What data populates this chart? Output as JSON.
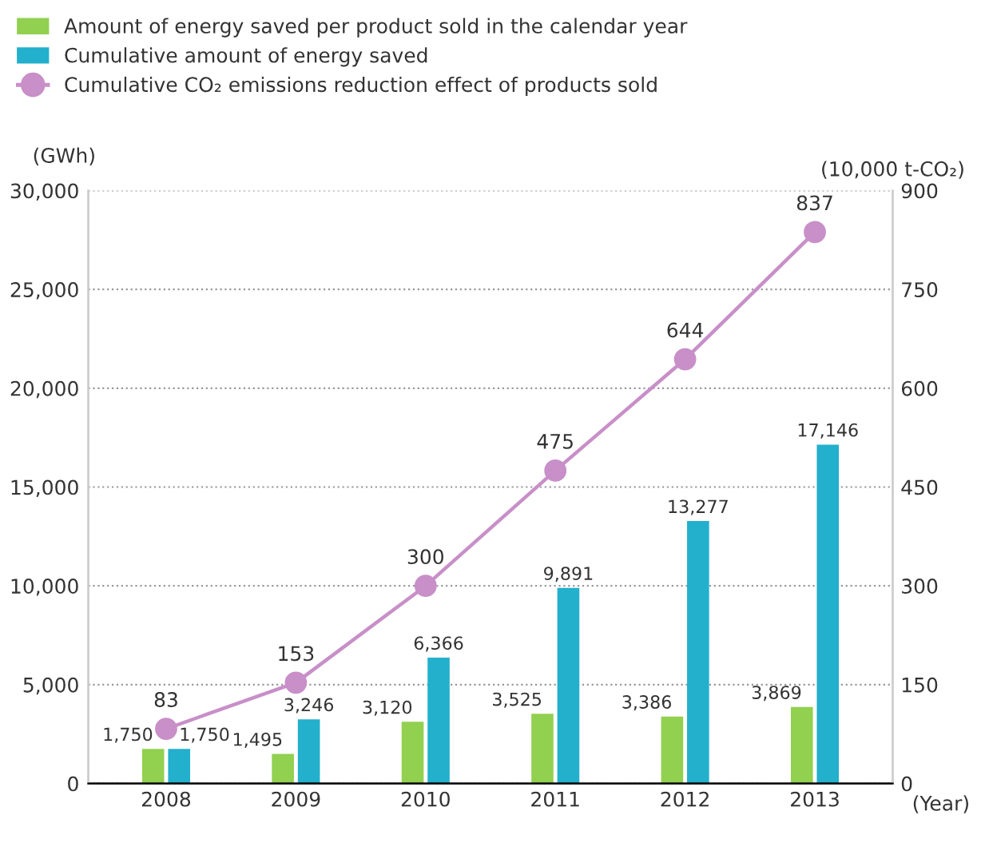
{
  "chart_data": {
    "type": "bar",
    "categories": [
      "2008",
      "2009",
      "2010",
      "2011",
      "2012",
      "2013"
    ],
    "series": [
      {
        "name": "Amount of energy saved per product sold in the calendar year",
        "color": "#92d050",
        "values": [
          1750,
          1495,
          3120,
          3525,
          3386,
          3869
        ],
        "value_labels": [
          "1,750",
          "1,495",
          "3,120",
          "3,525",
          "3,386",
          "3,869"
        ]
      },
      {
        "name": "Cumulative amount of energy saved",
        "color": "#22b0cc",
        "values": [
          1750,
          3246,
          6366,
          9891,
          13277,
          17146
        ],
        "value_labels": [
          "1,750",
          "3,246",
          "6,366",
          "9,891",
          "13,277",
          "17,146"
        ]
      },
      {
        "name": "Cumulative CO₂ emissions reduction effect of products sold",
        "type": "line",
        "axis": "y2",
        "color": "#c88fc8",
        "marker": "circle",
        "values": [
          83,
          153,
          300,
          475,
          644,
          837
        ],
        "value_labels": [
          "83",
          "153",
          "300",
          "475",
          "644",
          "837"
        ]
      }
    ],
    "ylabel": "(GWh)",
    "y2label": "(10,000 t-CO₂)",
    "xlabel": "(Year)",
    "ylim": [
      0,
      30000
    ],
    "yticks": [
      0,
      {
        "value": 5000,
        "label": "5,000"
      },
      {
        "value": 10000,
        "label": "10,000"
      },
      {
        "value": 15000,
        "label": "15,000"
      },
      {
        "value": 20000,
        "label": "20,000"
      },
      {
        "value": 25000,
        "label": "25,000"
      },
      {
        "value": 30000,
        "label": "30,000"
      }
    ],
    "y2lim": [
      0,
      900
    ],
    "y2ticks": [
      0,
      150,
      300,
      450,
      600,
      750,
      900
    ],
    "grid": "y",
    "legend": "top left"
  }
}
